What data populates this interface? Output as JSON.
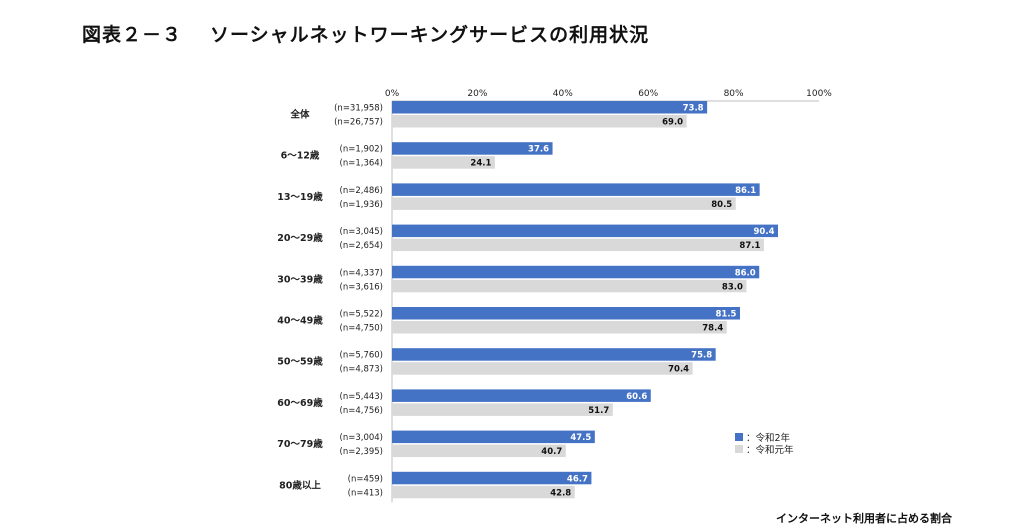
{
  "header": {
    "figure_no": "図表２－３",
    "title": "ソーシャルネットワーキングサービスの利用状況"
  },
  "footer": {
    "note": "インターネット利用者に占める割合"
  },
  "chart_data": {
    "type": "bar",
    "orientation": "horizontal",
    "xlim": [
      0,
      100
    ],
    "x_ticks": [
      "0%",
      "20%",
      "40%",
      "60%",
      "80%",
      "100%"
    ],
    "categories": [
      "全体",
      "6～12歳",
      "13～19歳",
      "20～29歳",
      "30～39歳",
      "40～49歳",
      "50～59歳",
      "60～69歳",
      "70～79歳",
      "80歳以上"
    ],
    "series": [
      {
        "name": "：令和2年",
        "color": "#4472c4",
        "values": [
          73.8,
          37.6,
          86.1,
          90.4,
          86.0,
          81.5,
          75.8,
          60.6,
          47.5,
          46.7
        ],
        "labels": [
          "73.8",
          "37.6",
          "86.1",
          "90.4",
          "86.0",
          "81.5",
          "75.8",
          "60.6",
          "47.5",
          "46.7"
        ],
        "n": [
          "(n=31,958)",
          "(n=1,902)",
          "(n=2,486)",
          "(n=3,045)",
          "(n=4,337)",
          "(n=5,522)",
          "(n=5,760)",
          "(n=5,443)",
          "(n=3,004)",
          "(n=459)"
        ]
      },
      {
        "name": "：令和元年",
        "color": "#d9d9d9",
        "values": [
          69.0,
          24.1,
          80.5,
          87.1,
          83.0,
          78.4,
          70.4,
          51.7,
          40.7,
          42.8
        ],
        "labels": [
          "69.0",
          "24.1",
          "80.5",
          "87.1",
          "83.0",
          "78.4",
          "70.4",
          "51.7",
          "40.7",
          "42.8"
        ],
        "n": [
          "(n=26,757)",
          "(n=1,364)",
          "(n=1,936)",
          "(n=2,654)",
          "(n=3,616)",
          "(n=4,750)",
          "(n=4,873)",
          "(n=4,756)",
          "(n=2,395)",
          "(n=413)"
        ]
      }
    ],
    "legend_position": "bottom-right"
  }
}
